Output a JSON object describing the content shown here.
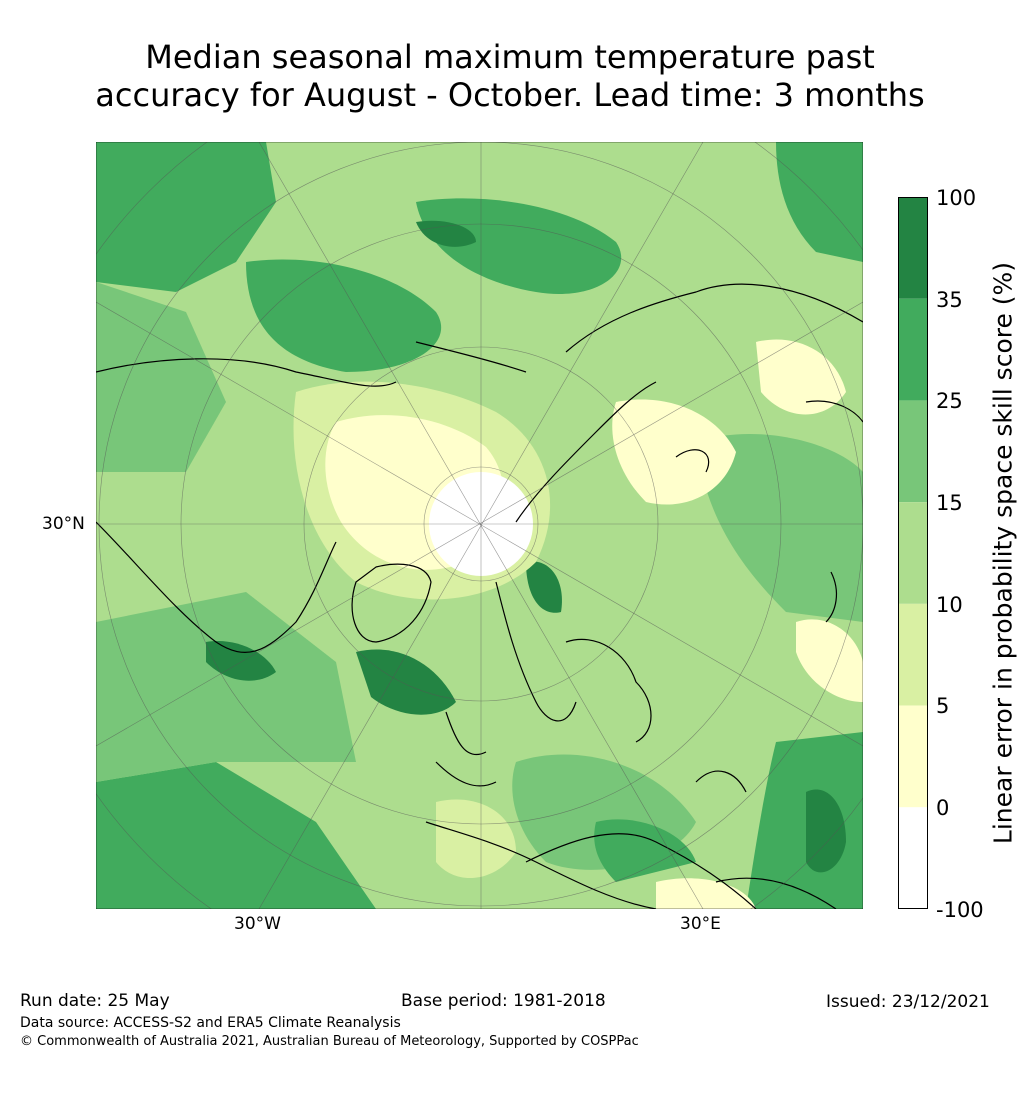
{
  "title_line1": "Median seasonal maximum temperature past",
  "title_line2": "accuracy for August - October. Lead time: 3 months",
  "map": {
    "projection": "north-polar-stereographic",
    "lat_label": "30°N",
    "lon_labels": [
      "30°W",
      "30°E"
    ],
    "palette": {
      "white": "#ffffff",
      "pale_yellow": "#ffffcc",
      "yellow_green": "#d9f0a3",
      "light_green": "#addd8e",
      "mid_green": "#78c679",
      "green": "#41ab5d",
      "dark_green": "#238443",
      "coast": "#000000",
      "grid": "#555555"
    }
  },
  "colorbar": {
    "label": "Linear error in probability space skill score (%)",
    "ticks": [
      "100",
      "35",
      "25",
      "15",
      "10",
      "5",
      "0",
      "-100"
    ],
    "bins": [
      {
        "from": "35",
        "to": "100",
        "color": "#238443"
      },
      {
        "from": "25",
        "to": "35",
        "color": "#41ab5d"
      },
      {
        "from": "15",
        "to": "25",
        "color": "#78c679"
      },
      {
        "from": "10",
        "to": "15",
        "color": "#addd8e"
      },
      {
        "from": "5",
        "to": "10",
        "color": "#d9f0a3"
      },
      {
        "from": "0",
        "to": "5",
        "color": "#ffffcc"
      },
      {
        "from": "-100",
        "to": "0",
        "color": "#ffffff"
      }
    ]
  },
  "footer": {
    "run_date": "Run date: 25 May",
    "base_period": "Base period: 1981-2018",
    "issued": "Issued: 23/12/2021",
    "data_source": "Data source: ACCESS-S2 and ERA5 Climate Reanalysis",
    "copyright": "© Commonwealth of Australia 2021, Australian Bureau of Meteorology, Supported by COSPPac"
  }
}
